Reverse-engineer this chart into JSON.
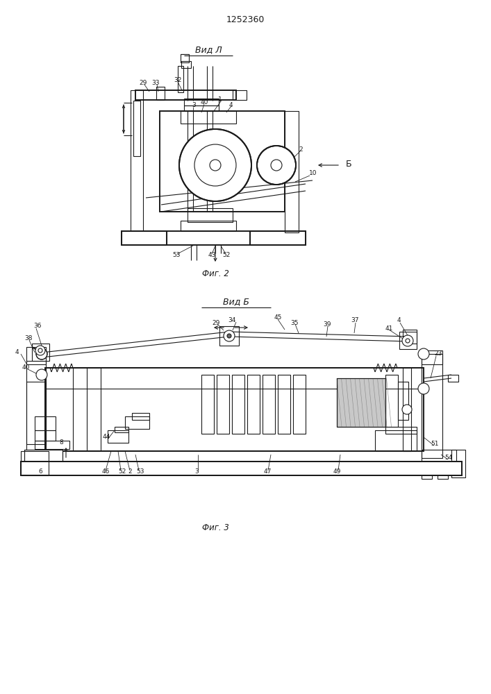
{
  "title": "1252360",
  "fig2_label": "Вид Л",
  "fig3_label": "Вид Б",
  "fig2_caption": "Фиг. 2",
  "fig3_caption": "Фиг. 3",
  "bg_color": "#ffffff",
  "line_color": "#1a1a1a"
}
